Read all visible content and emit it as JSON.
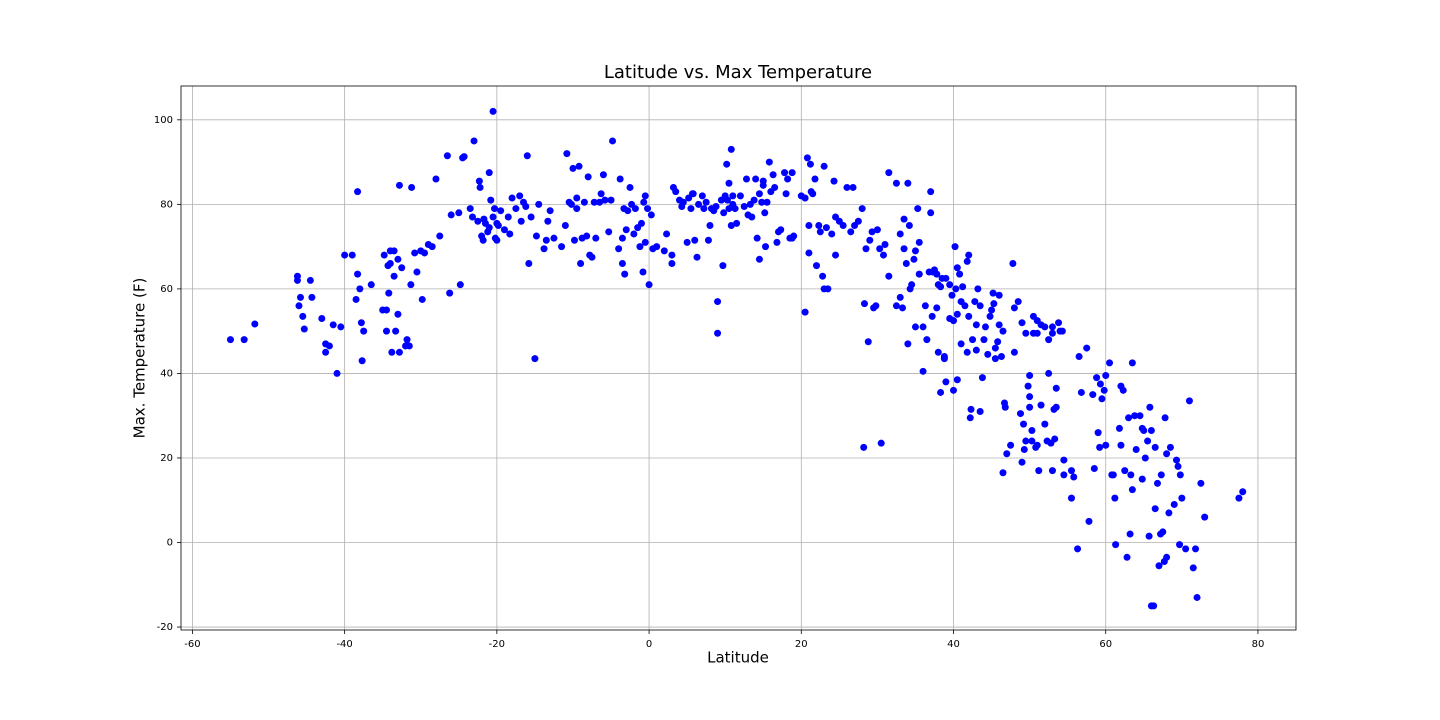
{
  "chart_data": {
    "type": "scatter",
    "title": "Latitude vs. Max Temperature",
    "x_label": "Latitude",
    "y_label": "Max. Temperature (F)",
    "color": "#0000ff",
    "grid": true,
    "xlim": [
      -61.5,
      85
    ],
    "ylim": [
      -20.7,
      108
    ],
    "xticks": [
      -60,
      -40,
      -20,
      0,
      20,
      40,
      60,
      80
    ],
    "yticks": [
      -20,
      0,
      20,
      40,
      60,
      80,
      100
    ],
    "x": [
      -55,
      -53.2,
      -51.8,
      -46.2,
      -46.2,
      -46,
      -45.8,
      -45.5,
      -45.3,
      -44.5,
      -44.3,
      -43,
      -42.5,
      -42.5,
      -42,
      -41.5,
      -41,
      -40.5,
      -40,
      -39,
      -38.5,
      -38.3,
      -38.3,
      -38,
      -37.8,
      -37.7,
      -37.5,
      -36.5,
      -35,
      -34.8,
      -34.5,
      -34.5,
      -34.3,
      -34.2,
      -34,
      -34,
      -33.8,
      -33.5,
      -33.5,
      -33.3,
      -33,
      -33,
      -32.8,
      -32.8,
      -32.5,
      -32,
      -31.8,
      -31.5,
      -31.3,
      -31.2,
      -30.8,
      -30.5,
      -30,
      -29.8,
      -29.5,
      -29,
      -28.5,
      -28,
      -27.5,
      -26.5,
      -26.2,
      -26,
      -25,
      -24.8,
      -24.5,
      -24.3,
      -23.5,
      -23.2,
      -23,
      -22.5,
      -22.3,
      -22.2,
      -22,
      -21.8,
      -21.7,
      -21.5,
      -21.2,
      -21,
      -21,
      -20.8,
      -20.5,
      -20.5,
      -20.3,
      -20.2,
      -20,
      -20,
      -19.8,
      -19.5,
      -19,
      -18.5,
      -18.3,
      -18,
      -17.5,
      -17,
      -16.8,
      -16.5,
      -16.2,
      -16,
      -15.8,
      -15.5,
      -15,
      -14.8,
      -14.5,
      -13.8,
      -13.5,
      -13.3,
      -13,
      -12.5,
      -11.5,
      -11,
      -10.8,
      -10.5,
      -10.2,
      -10,
      -9.8,
      -9.5,
      -9.5,
      -9.2,
      -9,
      -8.8,
      -8.5,
      -8.2,
      -8,
      -7.8,
      -7.5,
      -7.2,
      -7,
      -6.5,
      -6.3,
      -6,
      -5.8,
      -5.3,
      -5,
      -4.8,
      -4,
      -3.8,
      -3.5,
      -3.5,
      -3.3,
      -3.2,
      -3,
      -2.8,
      -2.5,
      -2.3,
      -2,
      -1.8,
      -1.5,
      -1.2,
      -1,
      -0.8,
      -0.7,
      -0.5,
      -0.5,
      -0.2,
      0,
      0.3,
      0.5,
      1,
      2,
      2.3,
      3,
      3,
      3.2,
      3.5,
      4,
      4.3,
      4.5,
      5,
      5.2,
      5.5,
      5.7,
      5.8,
      6,
      6.3,
      6.5,
      7,
      7.2,
      7.5,
      7.8,
      8,
      8.2,
      8.5,
      8.8,
      9,
      9,
      9.5,
      9.7,
      9.8,
      10,
      10,
      10.2,
      10.3,
      10.5,
      10.5,
      10.8,
      10.8,
      11,
      11,
      11.3,
      11.5,
      12,
      12.5,
      12.8,
      13,
      13.3,
      13.5,
      13.8,
      14,
      14.2,
      14.5,
      14.5,
      14.8,
      15,
      15,
      15.2,
      15.3,
      15.5,
      15.8,
      16,
      16.3,
      16.5,
      16.8,
      17,
      17.3,
      17.8,
      18,
      18.2,
      18.5,
      18.8,
      18.8,
      19,
      20,
      20.5,
      20.5,
      20.8,
      21,
      21,
      21.2,
      21.3,
      21.5,
      21.8,
      22,
      22.3,
      22.5,
      22.8,
      23,
      23,
      23.3,
      23.5,
      24,
      24.3,
      24.5,
      24.5,
      25,
      25.5,
      26,
      26.5,
      26.8,
      27,
      27.5,
      28,
      28.2,
      28.3,
      28.5,
      28.8,
      29,
      29.3,
      29.5,
      29.8,
      30,
      30.3,
      30.5,
      30.8,
      31,
      31.5,
      31.5,
      32.5,
      32.5,
      33,
      33,
      33.3,
      33.5,
      33.5,
      33.8,
      34,
      34,
      34.2,
      34.3,
      34.5,
      34.8,
      35,
      35,
      35.3,
      35.5,
      35.5,
      36,
      36,
      36.3,
      36.5,
      36.8,
      37,
      37,
      37.2,
      37.3,
      37.5,
      37.8,
      37.8,
      38,
      38,
      38.3,
      38.3,
      38.5,
      38.8,
      38.8,
      39,
      39,
      39.5,
      39.5,
      39.8,
      40,
      40,
      40.2,
      40.3,
      40.5,
      40.5,
      40.5,
      40.8,
      41,
      41,
      41.2,
      41.5,
      41.8,
      41.8,
      42,
      42,
      42.2,
      42.3,
      42.5,
      42.8,
      43,
      43,
      43.2,
      43.5,
      43.5,
      43.8,
      44,
      44.2,
      44.5,
      44.8,
      45,
      45.2,
      45.3,
      45.5,
      45.5,
      45.8,
      46,
      46,
      46.3,
      46.5,
      46.5,
      46.7,
      46.8,
      47,
      47.5,
      47.8,
      48,
      48,
      48.5,
      48.8,
      49,
      49,
      49.2,
      49.3,
      49.5,
      49.5,
      49.8,
      50,
      50,
      50,
      50.3,
      50.3,
      50.5,
      50.5,
      50.8,
      51,
      51,
      51,
      51.2,
      51.5,
      51.5,
      52,
      52,
      52.3,
      52.5,
      52.5,
      52.8,
      53,
      53,
      53,
      53.2,
      53.3,
      53.5,
      53.5,
      53.8,
      54,
      54.3,
      54.5,
      54.5,
      55.5,
      55.5,
      55.8,
      56.3,
      56.5,
      56.8,
      57.5,
      57.8,
      58.3,
      58.5,
      58.8,
      59,
      59.2,
      59.3,
      59.5,
      59.8,
      60,
      60,
      60.5,
      60.8,
      61,
      61.2,
      61.3,
      61.8,
      62,
      62,
      62.3,
      62.5,
      62.8,
      63,
      63.2,
      63.3,
      63.5,
      63.5,
      63.8,
      64,
      64.5,
      64.8,
      64.8,
      65,
      65.2,
      65.5,
      65.7,
      65.8,
      66,
      66,
      66.3,
      66.5,
      66.5,
      66.8,
      67,
      67.2,
      67.3,
      67.5,
      67.7,
      67.8,
      68,
      68,
      68.3,
      68.5,
      69,
      69.3,
      69.5,
      69.7,
      69.8,
      70,
      70.5,
      71,
      71.5,
      71.8,
      72,
      72.5,
      73,
      77.5,
      78
    ],
    "values": [
      48,
      48,
      51.7,
      63,
      62,
      56,
      58,
      53.5,
      50.5,
      62,
      58,
      53,
      47,
      45,
      46.5,
      51.5,
      40,
      51,
      68,
      68,
      57.5,
      63.5,
      83,
      60,
      52,
      43,
      50,
      61,
      55,
      68,
      55,
      50,
      65.5,
      59,
      66,
      69,
      45,
      63,
      69,
      50,
      67,
      54,
      45,
      84.5,
      65,
      46.5,
      48,
      46.5,
      61,
      84,
      68.5,
      64,
      69,
      57.5,
      68.5,
      70.5,
      70,
      86,
      72.5,
      91.5,
      59,
      77.5,
      78,
      61,
      91,
      91.3,
      79,
      77,
      95,
      76,
      85.5,
      84,
      72.5,
      71.5,
      76.5,
      75.5,
      73.5,
      87.5,
      74.5,
      81,
      102,
      77,
      79,
      72,
      75.5,
      71.5,
      75,
      78.5,
      74,
      77,
      73,
      81.5,
      79,
      82,
      76,
      80.5,
      79.5,
      91.5,
      66,
      77,
      43.5,
      72.5,
      80,
      69.5,
      71.5,
      76,
      78.5,
      72,
      70,
      75,
      92,
      80.5,
      80,
      88.5,
      71.5,
      81.5,
      79,
      89,
      66,
      72,
      80.5,
      72.5,
      86.5,
      68,
      67.5,
      80.5,
      72,
      80.5,
      82.5,
      87,
      81,
      73.5,
      81,
      95,
      69.5,
      86,
      72,
      66,
      79,
      63.5,
      74,
      78.5,
      84,
      80,
      73,
      79,
      74.5,
      70,
      75.5,
      64,
      80.5,
      82,
      71,
      79,
      61,
      77.5,
      69.5,
      70,
      69,
      73,
      66,
      68,
      84,
      83,
      81,
      79.5,
      80.5,
      71,
      81.5,
      79,
      82.5,
      82.5,
      71.5,
      67.5,
      80,
      82,
      79,
      80.5,
      71.5,
      75,
      79,
      78.5,
      79.5,
      57,
      49.5,
      81,
      65.5,
      78,
      81.5,
      82,
      89.5,
      81,
      79,
      85,
      75,
      93,
      80,
      82,
      79,
      75.5,
      82,
      79.5,
      86,
      77.5,
      80,
      77,
      81,
      86,
      72,
      67,
      82.5,
      80.5,
      84.5,
      85.5,
      78,
      70,
      80.5,
      90,
      83,
      87,
      84,
      71,
      73.5,
      74,
      87.5,
      82.5,
      86,
      72,
      72,
      87.5,
      72.5,
      82,
      81.5,
      54.5,
      91,
      68.5,
      75,
      89.5,
      83,
      82.5,
      86,
      65.5,
      75,
      73.5,
      63,
      89,
      60,
      74.5,
      60,
      73,
      85.5,
      77,
      68,
      76,
      75,
      84,
      73.5,
      84,
      75,
      76,
      79,
      22.5,
      56.5,
      69.5,
      47.5,
      71.5,
      73.5,
      55.5,
      56,
      74,
      69.5,
      23.5,
      68,
      70.5,
      63,
      87.5,
      85,
      56,
      58,
      73,
      55.5,
      76.5,
      69.5,
      66,
      85,
      47,
      75,
      60,
      61,
      67,
      69,
      51,
      79,
      71,
      63.5,
      51,
      40.5,
      56,
      48,
      64,
      83,
      78,
      53.5,
      64,
      64.5,
      63.5,
      55.5,
      61,
      45,
      35.5,
      60.5,
      62.5,
      44,
      43.5,
      62.5,
      38,
      61,
      53,
      58.5,
      36,
      52.5,
      70,
      60,
      65,
      38.5,
      54,
      63.5,
      57,
      47,
      60.5,
      56,
      45,
      66.5,
      68,
      53.5,
      29.5,
      31.5,
      48,
      57,
      51.5,
      45.5,
      60,
      56,
      31,
      39,
      48,
      51,
      44.5,
      53.5,
      55,
      59,
      56.5,
      46,
      43.5,
      47.5,
      51.5,
      58.5,
      44,
      50,
      16.5,
      33,
      32,
      21,
      23,
      66,
      45,
      55.5,
      57,
      30.5,
      52,
      19,
      28,
      22,
      24,
      49.5,
      37,
      34.5,
      32,
      39.5,
      26.5,
      24,
      53.5,
      49.5,
      22.5,
      23,
      52.5,
      49.5,
      17,
      32.5,
      51.5,
      51,
      28,
      24,
      40,
      48,
      23.5,
      17,
      51,
      49.5,
      31.5,
      24.5,
      36.5,
      32,
      52,
      50,
      50,
      19.5,
      16,
      17,
      10.5,
      15.5,
      -1.5,
      44,
      35.5,
      46,
      5,
      35,
      17.5,
      39,
      26,
      22.5,
      37.5,
      34,
      36,
      39.5,
      23,
      42.5,
      16,
      16,
      10.5,
      -0.5,
      27,
      37,
      23,
      36,
      17,
      -3.5,
      29.5,
      2,
      16,
      42.5,
      12.5,
      30,
      22,
      30,
      27,
      15,
      26.5,
      20,
      24,
      1.5,
      32,
      -15,
      26.5,
      -15,
      8,
      22.5,
      14,
      -5.5,
      2,
      16,
      2.5,
      -4.5,
      29.5,
      -3.5,
      21,
      7,
      22.5,
      9,
      19.5,
      18,
      -0.5,
      16,
      10.5,
      -1.5,
      33.5,
      -6,
      -1.5,
      -13,
      14,
      6,
      10.5,
      12
    ]
  }
}
